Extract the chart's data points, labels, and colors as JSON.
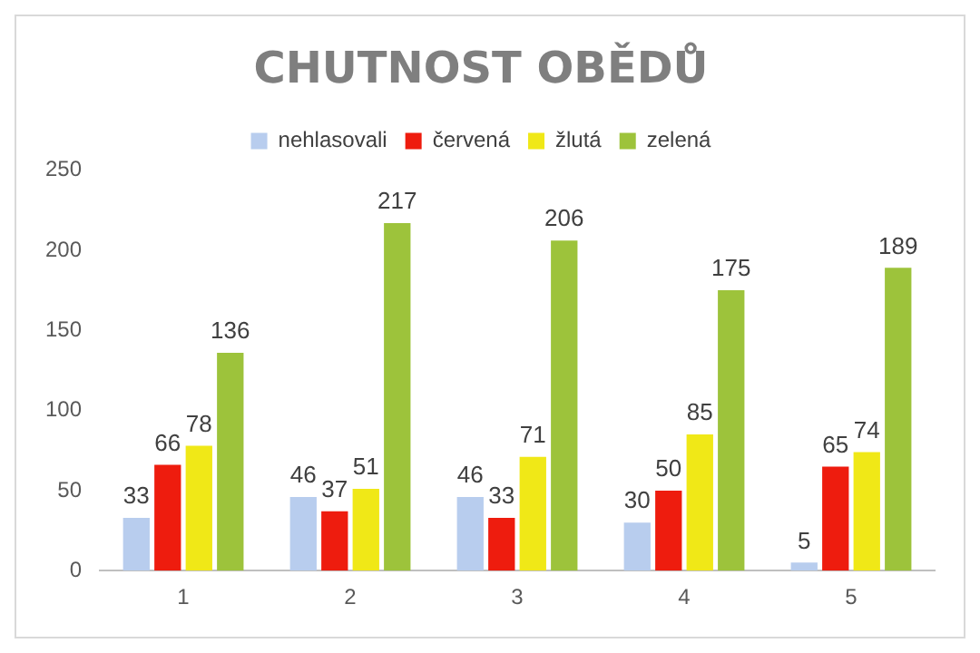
{
  "chart_data": {
    "type": "bar",
    "title": "CHUTNOST OBĚDŮ",
    "categories": [
      "1",
      "2",
      "3",
      "4",
      "5"
    ],
    "series": [
      {
        "name": "nehlasovali",
        "color": "#b8cdee",
        "values": [
          33,
          46,
          46,
          30,
          5
        ]
      },
      {
        "name": "červená",
        "color": "#ee1c0e",
        "values": [
          66,
          37,
          33,
          50,
          65
        ]
      },
      {
        "name": "žlutá",
        "color": "#f0e817",
        "values": [
          78,
          51,
          71,
          85,
          74
        ]
      },
      {
        "name": "zelená",
        "color": "#9dc33b",
        "values": [
          136,
          217,
          206,
          175,
          189
        ]
      }
    ],
    "ylim": [
      0,
      250
    ],
    "yticks": [
      0,
      50,
      100,
      150,
      200,
      250
    ],
    "grid": false,
    "legend": "top",
    "data_labels": true
  }
}
